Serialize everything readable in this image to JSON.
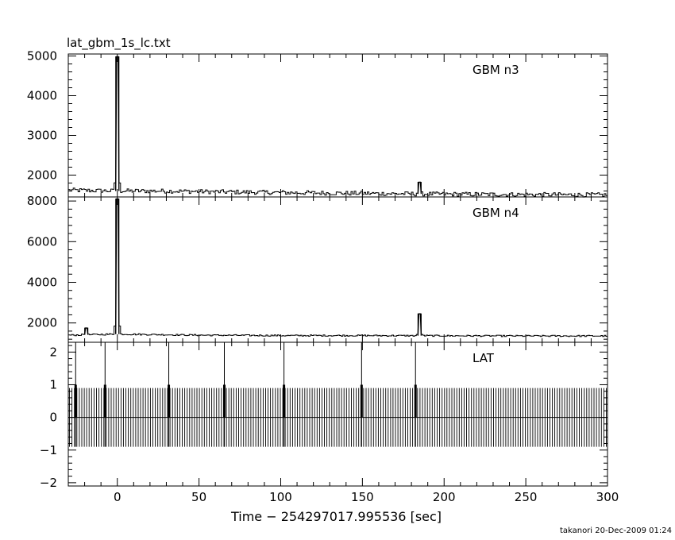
{
  "figure": {
    "title": "lat_gbm_1s_lc.txt",
    "footer": "takanori 20-Dec-2009 01:24"
  },
  "chart_data": [
    {
      "type": "line",
      "panel": "GBM n3",
      "label": "GBM n3",
      "x_range": [
        -30,
        300
      ],
      "ylim": [
        1450,
        5050
      ],
      "y_ticks": [
        2000,
        3000,
        4000,
        5000
      ],
      "baseline_profile": [
        [
          -30,
          1620
        ],
        [
          0,
          1600
        ],
        [
          30,
          1600
        ],
        [
          60,
          1580
        ],
        [
          100,
          1560
        ],
        [
          150,
          1540
        ],
        [
          200,
          1520
        ],
        [
          250,
          1510
        ],
        [
          300,
          1500
        ]
      ],
      "noise_amplitude": 55,
      "peaks": [
        {
          "x": 0,
          "y": 4980
        },
        {
          "x": 185,
          "y": 1820
        }
      ]
    },
    {
      "type": "line",
      "panel": "GBM n4",
      "label": "GBM n4",
      "x_range": [
        -30,
        300
      ],
      "ylim": [
        1050,
        8200
      ],
      "y_ticks": [
        2000,
        4000,
        6000,
        8000
      ],
      "baseline_profile": [
        [
          -30,
          1400
        ],
        [
          0,
          1450
        ],
        [
          50,
          1400
        ],
        [
          100,
          1380
        ],
        [
          150,
          1380
        ],
        [
          200,
          1370
        ],
        [
          250,
          1360
        ],
        [
          300,
          1360
        ]
      ],
      "noise_amplitude": 35,
      "peaks": [
        {
          "x": -19,
          "y": 1750
        },
        {
          "x": 0,
          "y": 8100
        },
        {
          "x": 185,
          "y": 2450
        }
      ]
    },
    {
      "type": "line",
      "panel": "LAT",
      "label": "LAT",
      "x_range": [
        -30,
        300
      ],
      "ylim": [
        -2.1,
        2.3
      ],
      "y_ticks": [
        -2,
        -1,
        0,
        1,
        2
      ],
      "baseline": 0,
      "comb_step": 1.5,
      "comb_high": 0.9,
      "comb_low": -0.9,
      "spikes": [
        -25.5,
        -7.5,
        31.5,
        65.5,
        102,
        149.5,
        182.5
      ],
      "spike_top": 2.3,
      "spike_step": 1.0
    }
  ],
  "x_axis": {
    "label": "Time − 254297017.995536 [sec]",
    "range": [
      -30,
      300
    ],
    "ticks": [
      0,
      50,
      100,
      150,
      200,
      250,
      300
    ],
    "minor_step": 10
  }
}
